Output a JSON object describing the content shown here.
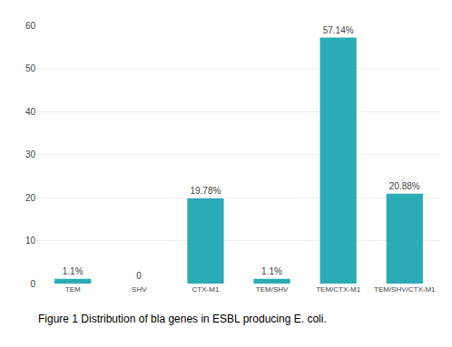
{
  "chart_data": {
    "type": "bar",
    "categories": [
      "TEM",
      "SHV",
      "CTX-M1",
      "TEM/SHV",
      "TEM/CTX-M1",
      "TEM/SHV/CTX-M1"
    ],
    "values": [
      1.1,
      0,
      19.78,
      1.1,
      57.14,
      20.88
    ],
    "value_labels": [
      "1.1%",
      "0",
      "19.78%",
      "1.1%",
      "57.14%",
      "20.88%"
    ],
    "data_labels": true,
    "color": "#2AABB5",
    "ylim": [
      0,
      60
    ],
    "yticks": [
      0,
      10,
      20,
      30,
      40,
      50,
      60
    ],
    "grid": true,
    "annotations": [
      "Figure 1 Distribution of bla genes in ESBL producing E. coli."
    ]
  }
}
